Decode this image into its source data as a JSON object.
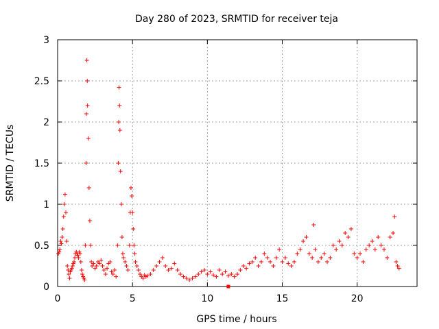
{
  "chart_data": {
    "type": "scatter",
    "title": "Day 280 of 2023, SRMTID for receiver teja",
    "xlabel": "GPS time / hours",
    "ylabel": "SRMTID / TECUs",
    "xlim": [
      0,
      24
    ],
    "ylim": [
      0,
      3
    ],
    "xticks": [
      "0",
      "5",
      "10",
      "15",
      "20"
    ],
    "yticks": [
      "0",
      "0.5",
      "1",
      "1.5",
      "2",
      "2.5",
      "3"
    ],
    "grid": true,
    "marker": "+",
    "color": "#ff0000",
    "special_marker": {
      "x": 11.4,
      "y": 0.0,
      "shape": "square"
    },
    "series": [
      {
        "name": "SRMTID",
        "points": [
          [
            0.05,
            0.4
          ],
          [
            0.1,
            0.42
          ],
          [
            0.15,
            0.45
          ],
          [
            0.2,
            0.55
          ],
          [
            0.25,
            0.52
          ],
          [
            0.3,
            0.6
          ],
          [
            0.35,
            0.7
          ],
          [
            0.4,
            0.85
          ],
          [
            0.45,
            1.0
          ],
          [
            0.5,
            1.12
          ],
          [
            0.55,
            0.9
          ],
          [
            0.6,
            0.55
          ],
          [
            0.65,
            0.25
          ],
          [
            0.7,
            0.2
          ],
          [
            0.75,
            0.15
          ],
          [
            0.8,
            0.1
          ],
          [
            0.85,
            0.18
          ],
          [
            0.9,
            0.2
          ],
          [
            0.95,
            0.22
          ],
          [
            1.0,
            0.25
          ],
          [
            1.05,
            0.28
          ],
          [
            1.1,
            0.3
          ],
          [
            1.15,
            0.35
          ],
          [
            1.2,
            0.4
          ],
          [
            1.25,
            0.42
          ],
          [
            1.3,
            0.38
          ],
          [
            1.35,
            0.4
          ],
          [
            1.4,
            0.35
          ],
          [
            1.45,
            0.42
          ],
          [
            1.5,
            0.4
          ],
          [
            1.55,
            0.3
          ],
          [
            1.6,
            0.2
          ],
          [
            1.65,
            0.15
          ],
          [
            1.7,
            0.12
          ],
          [
            1.75,
            0.1
          ],
          [
            1.8,
            0.08
          ],
          [
            1.85,
            0.5
          ],
          [
            1.9,
            1.5
          ],
          [
            1.92,
            2.1
          ],
          [
            1.95,
            2.75
          ],
          [
            1.98,
            2.5
          ],
          [
            2.0,
            2.2
          ],
          [
            2.05,
            1.8
          ],
          [
            2.1,
            1.2
          ],
          [
            2.15,
            0.8
          ],
          [
            2.2,
            0.5
          ],
          [
            2.25,
            0.3
          ],
          [
            2.3,
            0.25
          ],
          [
            2.4,
            0.28
          ],
          [
            2.5,
            0.22
          ],
          [
            2.6,
            0.25
          ],
          [
            2.7,
            0.3
          ],
          [
            2.8,
            0.28
          ],
          [
            2.9,
            0.32
          ],
          [
            3.0,
            0.25
          ],
          [
            3.1,
            0.2
          ],
          [
            3.2,
            0.15
          ],
          [
            3.3,
            0.22
          ],
          [
            3.4,
            0.28
          ],
          [
            3.5,
            0.3
          ],
          [
            3.6,
            0.18
          ],
          [
            3.7,
            0.15
          ],
          [
            3.8,
            0.2
          ],
          [
            3.9,
            0.12
          ],
          [
            4.0,
            0.5
          ],
          [
            4.05,
            1.5
          ],
          [
            4.08,
            2.0
          ],
          [
            4.1,
            2.42
          ],
          [
            4.13,
            2.2
          ],
          [
            4.16,
            1.9
          ],
          [
            4.2,
            1.4
          ],
          [
            4.25,
            1.0
          ],
          [
            4.3,
            0.6
          ],
          [
            4.35,
            0.4
          ],
          [
            4.4,
            0.35
          ],
          [
            4.5,
            0.3
          ],
          [
            4.6,
            0.25
          ],
          [
            4.7,
            0.2
          ],
          [
            4.8,
            0.5
          ],
          [
            4.85,
            0.9
          ],
          [
            4.9,
            1.2
          ],
          [
            4.95,
            1.1
          ],
          [
            5.0,
            0.9
          ],
          [
            5.05,
            0.7
          ],
          [
            5.1,
            0.5
          ],
          [
            5.15,
            0.4
          ],
          [
            5.2,
            0.3
          ],
          [
            5.3,
            0.25
          ],
          [
            5.4,
            0.2
          ],
          [
            5.5,
            0.15
          ],
          [
            5.6,
            0.12
          ],
          [
            5.7,
            0.1
          ],
          [
            5.8,
            0.14
          ],
          [
            5.9,
            0.12
          ],
          [
            6.0,
            0.13
          ],
          [
            6.2,
            0.15
          ],
          [
            6.4,
            0.2
          ],
          [
            6.6,
            0.25
          ],
          [
            6.8,
            0.3
          ],
          [
            7.0,
            0.35
          ],
          [
            7.2,
            0.25
          ],
          [
            7.4,
            0.2
          ],
          [
            7.6,
            0.22
          ],
          [
            7.8,
            0.28
          ],
          [
            8.0,
            0.2
          ],
          [
            8.2,
            0.15
          ],
          [
            8.4,
            0.12
          ],
          [
            8.6,
            0.1
          ],
          [
            8.8,
            0.08
          ],
          [
            9.0,
            0.1
          ],
          [
            9.2,
            0.12
          ],
          [
            9.4,
            0.15
          ],
          [
            9.6,
            0.18
          ],
          [
            9.8,
            0.2
          ],
          [
            10.0,
            0.15
          ],
          [
            10.2,
            0.18
          ],
          [
            10.4,
            0.14
          ],
          [
            10.6,
            0.12
          ],
          [
            10.8,
            0.2
          ],
          [
            11.0,
            0.15
          ],
          [
            11.2,
            0.18
          ],
          [
            11.4,
            0.13
          ],
          [
            11.6,
            0.15
          ],
          [
            11.8,
            0.12
          ],
          [
            12.0,
            0.15
          ],
          [
            12.2,
            0.2
          ],
          [
            12.4,
            0.25
          ],
          [
            12.6,
            0.22
          ],
          [
            12.8,
            0.28
          ],
          [
            13.0,
            0.3
          ],
          [
            13.2,
            0.35
          ],
          [
            13.4,
            0.25
          ],
          [
            13.6,
            0.3
          ],
          [
            13.8,
            0.4
          ],
          [
            14.0,
            0.35
          ],
          [
            14.2,
            0.3
          ],
          [
            14.4,
            0.25
          ],
          [
            14.6,
            0.35
          ],
          [
            14.8,
            0.45
          ],
          [
            15.0,
            0.3
          ],
          [
            15.2,
            0.35
          ],
          [
            15.4,
            0.28
          ],
          [
            15.6,
            0.25
          ],
          [
            15.8,
            0.3
          ],
          [
            16.0,
            0.4
          ],
          [
            16.2,
            0.45
          ],
          [
            16.4,
            0.55
          ],
          [
            16.6,
            0.6
          ],
          [
            16.8,
            0.4
          ],
          [
            17.0,
            0.35
          ],
          [
            17.1,
            0.75
          ],
          [
            17.2,
            0.45
          ],
          [
            17.4,
            0.3
          ],
          [
            17.6,
            0.35
          ],
          [
            17.8,
            0.4
          ],
          [
            18.0,
            0.3
          ],
          [
            18.2,
            0.35
          ],
          [
            18.4,
            0.5
          ],
          [
            18.6,
            0.45
          ],
          [
            18.8,
            0.55
          ],
          [
            19.0,
            0.5
          ],
          [
            19.2,
            0.65
          ],
          [
            19.4,
            0.6
          ],
          [
            19.6,
            0.7
          ],
          [
            19.8,
            0.4
          ],
          [
            20.0,
            0.35
          ],
          [
            20.2,
            0.4
          ],
          [
            20.4,
            0.3
          ],
          [
            20.6,
            0.45
          ],
          [
            20.8,
            0.5
          ],
          [
            21.0,
            0.55
          ],
          [
            21.2,
            0.45
          ],
          [
            21.4,
            0.6
          ],
          [
            21.6,
            0.5
          ],
          [
            21.8,
            0.45
          ],
          [
            22.0,
            0.35
          ],
          [
            22.2,
            0.6
          ],
          [
            22.4,
            0.65
          ],
          [
            22.5,
            0.85
          ],
          [
            22.6,
            0.3
          ],
          [
            22.7,
            0.25
          ],
          [
            22.8,
            0.22
          ]
        ]
      }
    ]
  }
}
